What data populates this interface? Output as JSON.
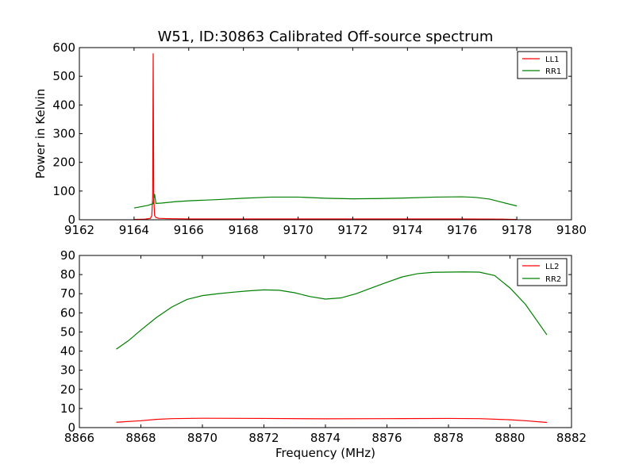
{
  "chart_data": [
    {
      "type": "line",
      "title": "W51, ID:30863 Calibrated Off-source spectrum",
      "xlabel": "",
      "ylabel": "Power in Kelvin",
      "xlim": [
        9162,
        9180
      ],
      "ylim": [
        0,
        600
      ],
      "xticks": [
        9162,
        9164,
        9166,
        9168,
        9170,
        9172,
        9174,
        9176,
        9178,
        9180
      ],
      "yticks": [
        0,
        100,
        200,
        300,
        400,
        500,
        600
      ],
      "legend": "top-right",
      "grid": false,
      "series": [
        {
          "name": "LL1",
          "color": "#ff0000",
          "x": [
            9164.0,
            9164.4,
            9164.6,
            9164.65,
            9164.68,
            9164.7,
            9164.72,
            9164.75,
            9164.8,
            9164.9,
            9165.2,
            9166,
            9168,
            9170,
            9172,
            9174,
            9176,
            9177.5,
            9178.0
          ],
          "y": [
            1,
            2,
            5,
            15,
            80,
            580,
            80,
            15,
            8,
            5,
            4,
            3,
            3,
            3,
            3,
            3,
            3,
            2,
            1
          ]
        },
        {
          "name": "RR1",
          "color": "#008000",
          "x": [
            9164.0,
            9164.5,
            9164.7,
            9164.75,
            9164.8,
            9165.0,
            9165.5,
            9166,
            9167,
            9168,
            9169,
            9170,
            9171,
            9172,
            9173,
            9174,
            9175,
            9176,
            9176.5,
            9177,
            9177.5,
            9178.0
          ],
          "y": [
            41,
            50,
            56,
            90,
            57,
            58,
            63,
            66,
            70,
            75,
            79,
            79,
            75,
            73,
            74,
            76,
            79,
            80,
            78,
            72,
            60,
            48
          ]
        }
      ]
    },
    {
      "type": "line",
      "title": "",
      "xlabel": "Frequency (MHz)",
      "ylabel": "",
      "xlim": [
        8866,
        8882
      ],
      "ylim": [
        0,
        90
      ],
      "xticks": [
        8866,
        8868,
        8870,
        8872,
        8874,
        8876,
        8878,
        8880,
        8882
      ],
      "yticks": [
        0,
        10,
        20,
        30,
        40,
        50,
        60,
        70,
        80,
        90
      ],
      "legend": "top-right",
      "grid": false,
      "series": [
        {
          "name": "LL2",
          "color": "#ff0000",
          "x": [
            8867.2,
            8868,
            8868.5,
            8869,
            8870,
            8872,
            8874,
            8876,
            8878,
            8879,
            8880,
            8880.5,
            8881.2
          ],
          "y": [
            2.8,
            3.6,
            4.3,
            4.7,
            4.9,
            4.8,
            4.6,
            4.7,
            4.8,
            4.7,
            4.1,
            3.6,
            2.7
          ]
        },
        {
          "name": "RR2",
          "color": "#008000",
          "x": [
            8867.2,
            8867.6,
            8868.0,
            8868.5,
            8869.0,
            8869.5,
            8870.0,
            8870.5,
            8871.0,
            8871.5,
            8872.0,
            8872.5,
            8873.0,
            8873.5,
            8874.0,
            8874.5,
            8875.0,
            8875.5,
            8876.0,
            8876.5,
            8877.0,
            8877.5,
            8878.0,
            8878.5,
            8879.0,
            8879.5,
            8880.0,
            8880.5,
            8881.2
          ],
          "y": [
            41.0,
            45.5,
            51.0,
            57.5,
            63.0,
            67.0,
            69.0,
            70.0,
            70.8,
            71.5,
            72.0,
            71.8,
            70.5,
            68.5,
            67.2,
            67.8,
            70.0,
            73.0,
            76.0,
            78.8,
            80.5,
            81.2,
            81.3,
            81.4,
            81.3,
            79.5,
            73.0,
            64.5,
            48.5
          ]
        }
      ]
    }
  ]
}
